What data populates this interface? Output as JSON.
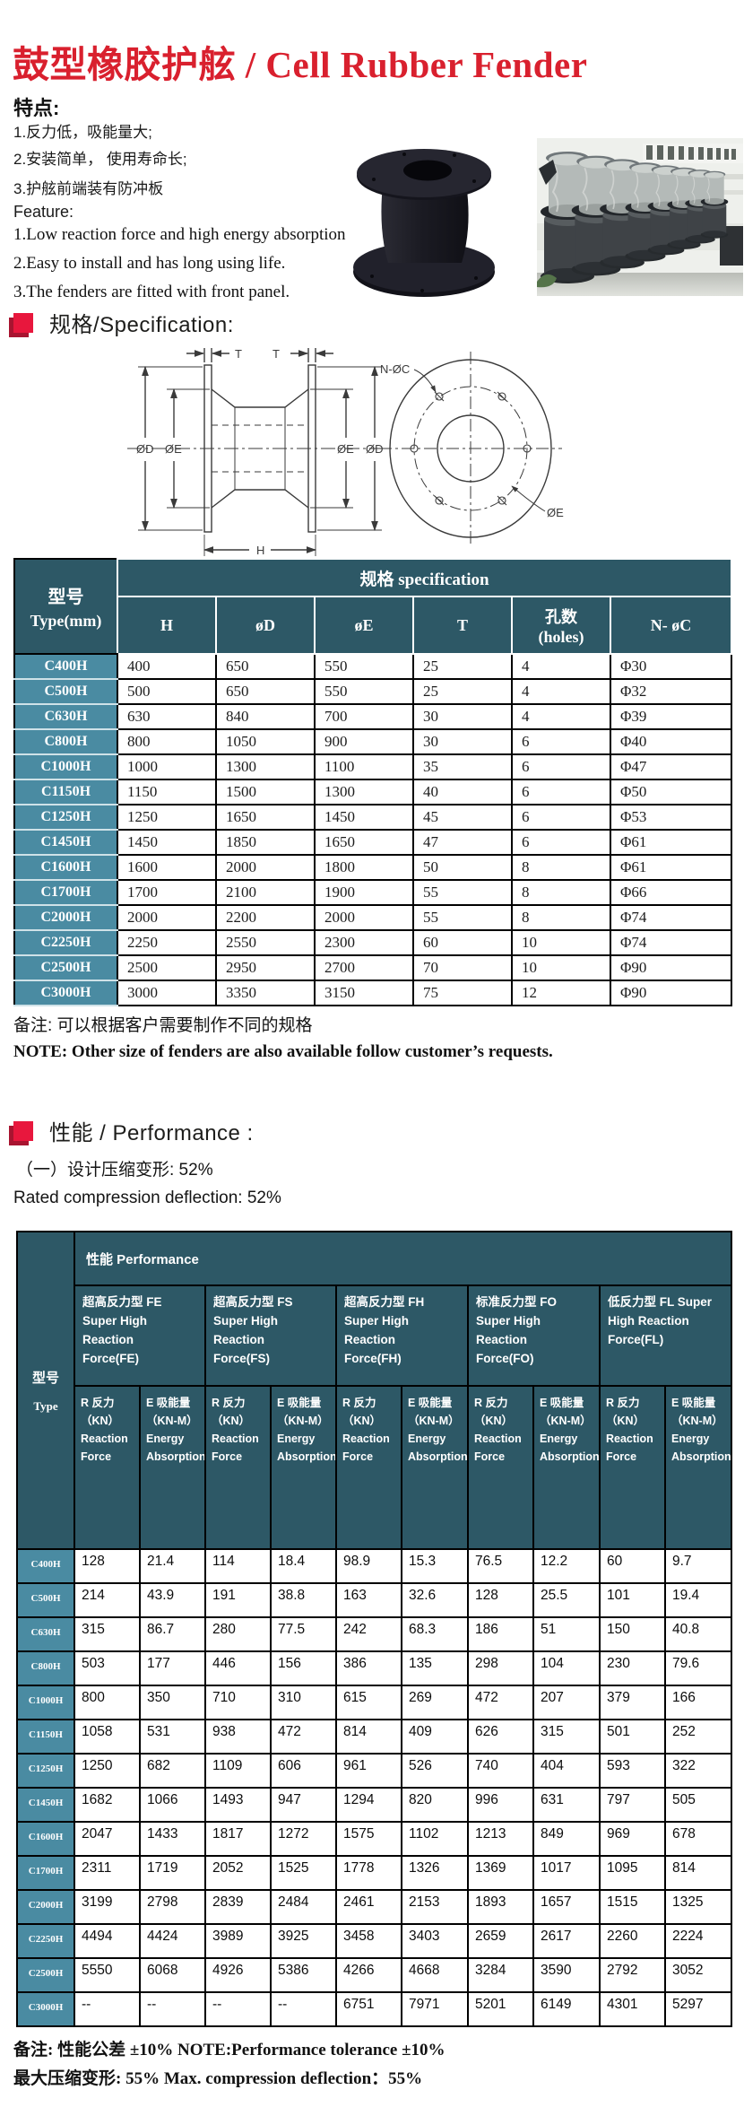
{
  "title": "鼓型橡胶护舷 / Cell Rubber Fender",
  "features": {
    "heading_zh": "特点:",
    "items_zh": [
      "1.反力低，吸能量大;",
      "2.安装简单， 使用寿命长;",
      "3.护舷前端装有防冲板"
    ],
    "heading_en": "Feature:",
    "items_en": [
      "1.Low reaction force and high energy absorption",
      "2.Easy to install and has long using life.",
      "3.The fenders are fitted with front panel."
    ]
  },
  "sections": {
    "spec": "规格/Specification:",
    "performance": "性能 / Performance :"
  },
  "drawing": {
    "labels": {
      "t_left": "T",
      "t_right": "T",
      "od_left": "ØD",
      "oe_left": "ØE",
      "oe_right": "ØE",
      "od_right": "ØD",
      "h": "H",
      "n_oc": "N-ØC",
      "oe_front": "ØE"
    }
  },
  "spec_table": {
    "corner_zh": "型号",
    "corner_en": "Type(mm)",
    "group_header": "规格  specification",
    "columns": [
      "H",
      "øD",
      "øE",
      "T",
      "孔数\n(holes)",
      "N- øC"
    ],
    "rows": [
      {
        "model": "C400H",
        "values": [
          "400",
          "650",
          "550",
          "25",
          "4",
          "Φ30"
        ]
      },
      {
        "model": "C500H",
        "values": [
          "500",
          "650",
          "550",
          "25",
          "4",
          "Φ32"
        ]
      },
      {
        "model": "C630H",
        "values": [
          "630",
          "840",
          "700",
          "30",
          "4",
          "Φ39"
        ]
      },
      {
        "model": "C800H",
        "values": [
          "800",
          "1050",
          "900",
          "30",
          "6",
          "Φ40"
        ]
      },
      {
        "model": "C1000H",
        "values": [
          "1000",
          "1300",
          "1100",
          "35",
          "6",
          "Φ47"
        ]
      },
      {
        "model": "C1150H",
        "values": [
          "1150",
          "1500",
          "1300",
          "40",
          "6",
          "Φ50"
        ]
      },
      {
        "model": "C1250H",
        "values": [
          "1250",
          "1650",
          "1450",
          "45",
          "6",
          "Φ53"
        ]
      },
      {
        "model": "C1450H",
        "values": [
          "1450",
          "1850",
          "1650",
          "47",
          "6",
          "Φ61"
        ]
      },
      {
        "model": "C1600H",
        "values": [
          "1600",
          "2000",
          "1800",
          "50",
          "8",
          "Φ61"
        ]
      },
      {
        "model": "C1700H",
        "values": [
          "1700",
          "2100",
          "1900",
          "55",
          "8",
          "Φ66"
        ]
      },
      {
        "model": "C2000H",
        "values": [
          "2000",
          "2200",
          "2000",
          "55",
          "8",
          "Φ74"
        ]
      },
      {
        "model": "C2250H",
        "values": [
          "2250",
          "2550",
          "2300",
          "60",
          "10",
          "Φ74"
        ]
      },
      {
        "model": "C2500H",
        "values": [
          "2500",
          "2950",
          "2700",
          "70",
          "10",
          "Φ90"
        ]
      },
      {
        "model": "C3000H",
        "values": [
          "3000",
          "3350",
          "3150",
          "75",
          "12",
          "Φ90"
        ]
      }
    ],
    "note_zh": "备注: 可以根据客户需要制作不同的规格",
    "note_en": "NOTE: Other size of fenders are also available follow customer’s requests."
  },
  "performance_intro": {
    "zh": "（一）设计压缩变形:  52%",
    "en": "Rated compression deflection:  52%"
  },
  "perf_table": {
    "corner_zh": "型号",
    "corner_en": "Type",
    "group_header": "性能 Performance",
    "groups": [
      "超高反力型 FE\nSuper High\nReaction\nForce(FE)",
      "超高反力型 FS\nSuper High\nReaction\nForce(FS)",
      "超高反力型 FH\nSuper High\nReaction\nForce(FH)",
      "标准反力型 FO\nSuper High\nReaction\nForce(FO)",
      "低反力型 FL Super\nHigh Reaction\nForce(FL)"
    ],
    "sub_r": "R 反力\n（KN）\nReaction Force",
    "sub_e": "E 吸能量\n（KN-M）\nEnergy Absorption",
    "rows": [
      {
        "model": "C400H",
        "values": [
          "128",
          "21.4",
          "114",
          "18.4",
          "98.9",
          "15.3",
          "76.5",
          "12.2",
          "60",
          "9.7"
        ]
      },
      {
        "model": "C500H",
        "values": [
          "214",
          "43.9",
          "191",
          "38.8",
          "163",
          "32.6",
          "128",
          "25.5",
          "101",
          "19.4"
        ]
      },
      {
        "model": "C630H",
        "values": [
          "315",
          "86.7",
          "280",
          "77.5",
          "242",
          "68.3",
          "186",
          "51",
          "150",
          "40.8"
        ]
      },
      {
        "model": "C800H",
        "values": [
          "503",
          "177",
          "446",
          "156",
          "386",
          "135",
          "298",
          "104",
          "230",
          "79.6"
        ]
      },
      {
        "model": "C1000H",
        "values": [
          "800",
          "350",
          "710",
          "310",
          "615",
          "269",
          "472",
          "207",
          "379",
          "166"
        ]
      },
      {
        "model": "C1150H",
        "values": [
          "1058",
          "531",
          "938",
          "472",
          "814",
          "409",
          "626",
          "315",
          "501",
          "252"
        ]
      },
      {
        "model": "C1250H",
        "values": [
          "1250",
          "682",
          "1109",
          "606",
          "961",
          "526",
          "740",
          "404",
          "593",
          "322"
        ]
      },
      {
        "model": "C1450H",
        "values": [
          "1682",
          "1066",
          "1493",
          "947",
          "1294",
          "820",
          "996",
          "631",
          "797",
          "505"
        ]
      },
      {
        "model": "C1600H",
        "values": [
          "2047",
          "1433",
          "1817",
          "1272",
          "1575",
          "1102",
          "1213",
          "849",
          "969",
          "678"
        ]
      },
      {
        "model": "C1700H",
        "values": [
          "2311",
          "1719",
          "2052",
          "1525",
          "1778",
          "1326",
          "1369",
          "1017",
          "1095",
          "814"
        ]
      },
      {
        "model": "C2000H",
        "values": [
          "3199",
          "2798",
          "2839",
          "2484",
          "2461",
          "2153",
          "1893",
          "1657",
          "1515",
          "1325"
        ]
      },
      {
        "model": "C2250H",
        "values": [
          "4494",
          "4424",
          "3989",
          "3925",
          "3458",
          "3403",
          "2659",
          "2617",
          "2260",
          "2224"
        ]
      },
      {
        "model": "C2500H",
        "values": [
          "5550",
          "6068",
          "4926",
          "5386",
          "4266",
          "4668",
          "3284",
          "3590",
          "2792",
          "3052"
        ]
      },
      {
        "model": "C3000H",
        "values": [
          "--",
          "--",
          "--",
          "--",
          "6751",
          "7971",
          "5201",
          "6149",
          "4301",
          "5297"
        ]
      }
    ]
  },
  "footer": {
    "line1": "备注: 性能公差 ±10%  NOTE:Performance tolerance ±10%",
    "line2": "最大压缩变形:  55%   Max. compression deflection：55%"
  },
  "colors": {
    "title_red": "#d9202e",
    "marker_red": "#e8173d",
    "header_teal": "#2d5866",
    "rowlabel_teal": "#4a8ba2"
  }
}
